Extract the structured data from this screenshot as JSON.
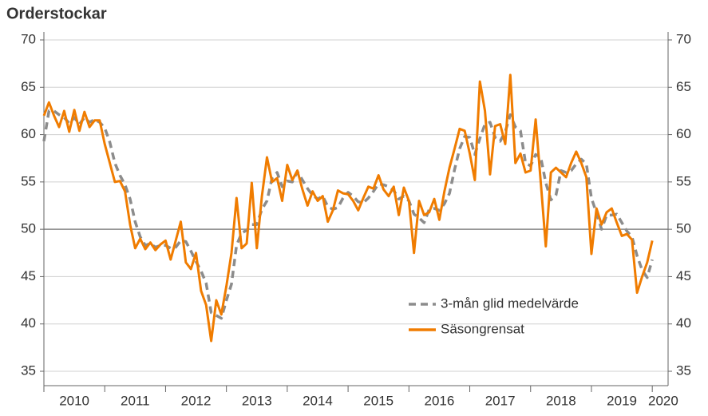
{
  "chart_data": {
    "type": "line",
    "title": "Orderstockar",
    "x_start": 2010,
    "x_step": 0.08333333333333333,
    "xlim": [
      2010,
      2020.26
    ],
    "xtick_marks": [
      2010,
      2011,
      2012,
      2013,
      2014,
      2015,
      2016,
      2017,
      2018,
      2019,
      2020
    ],
    "xticks": [
      {
        "value": 2010.5,
        "label": "2010"
      },
      {
        "value": 2011.5,
        "label": "2011"
      },
      {
        "value": 2012.5,
        "label": "2012"
      },
      {
        "value": 2013.5,
        "label": "2013"
      },
      {
        "value": 2014.5,
        "label": "2014"
      },
      {
        "value": 2015.5,
        "label": "2015"
      },
      {
        "value": 2016.5,
        "label": "2016"
      },
      {
        "value": 2017.5,
        "label": "2017"
      },
      {
        "value": 2018.5,
        "label": "2018"
      },
      {
        "value": 2019.5,
        "label": "2019"
      },
      {
        "value": 2020.18,
        "label": "2020"
      }
    ],
    "ylim": [
      35,
      70
    ],
    "yticks": [
      35,
      40,
      45,
      50,
      55,
      60,
      65,
      70
    ],
    "grid": true,
    "reference_line": 50,
    "legend_position": "lower right",
    "series": [
      {
        "name": "3-mån glid medelvärde",
        "color": "#8c8c8c",
        "dashed": true,
        "values": [
          59.3,
          62.5,
          62.5,
          62.1,
          61.8,
          61.2,
          61.8,
          61.1,
          61.8,
          61.3,
          61.6,
          61.3,
          60.7,
          59.2,
          57.0,
          55.7,
          54.7,
          53.2,
          50.8,
          49.2,
          48.3,
          48.5,
          48.1,
          48.3,
          48.3,
          48.0,
          48.1,
          48.8,
          48.7,
          47.7,
          46.6,
          45.6,
          44.3,
          41.2,
          40.9,
          40.6,
          42.5,
          44.2,
          48.3,
          49.6,
          49.9,
          50.5,
          50.5,
          52.1,
          53.0,
          55.4,
          56.0,
          54.5,
          55.1,
          55.0,
          56.1,
          55.2,
          54.3,
          53.6,
          53.2,
          53.5,
          52.4,
          52.1,
          52.3,
          53.3,
          53.9,
          53.5,
          52.9,
          52.8,
          53.3,
          54.0,
          54.8,
          54.7,
          54.5,
          54.1,
          53.2,
          53.5,
          53.0,
          51.6,
          51.2,
          50.7,
          52.1,
          52.2,
          52.0,
          52.7,
          53.8,
          56.3,
          58.5,
          59.8,
          59.7,
          57.9,
          59.6,
          61.1,
          61.3,
          59.7,
          59.3,
          60.3,
          62.1,
          60.8,
          60.4,
          57.0,
          56.7,
          57.9,
          57.6,
          54.9,
          53.1,
          53.6,
          56.2,
          56.0,
          56.2,
          56.9,
          57.4,
          56.9,
          53.3,
          51.7,
          50.0,
          51.5,
          51.5,
          51.6,
          50.7,
          49.8,
          49.2,
          47.2,
          45.7,
          44.9,
          46.8
        ]
      },
      {
        "name": "Säsongrensat",
        "color": "#f07c00",
        "dashed": false,
        "values": [
          62.0,
          63.4,
          62.0,
          60.8,
          62.5,
          60.3,
          62.6,
          60.4,
          62.4,
          60.8,
          61.5,
          61.5,
          59.0,
          57.0,
          55.0,
          55.1,
          54.0,
          50.5,
          48.0,
          49.0,
          47.9,
          48.6,
          47.8,
          48.4,
          48.8,
          46.8,
          48.8,
          50.8,
          46.5,
          45.8,
          47.5,
          43.5,
          42.0,
          38.2,
          42.5,
          41.0,
          44.0,
          47.5,
          53.3,
          48.0,
          48.5,
          54.9,
          48.0,
          53.5,
          57.6,
          55.0,
          55.4,
          53.0,
          56.8,
          55.2,
          56.2,
          54.2,
          52.5,
          54.0,
          53.0,
          53.5,
          50.8,
          52.0,
          54.1,
          53.8,
          53.7,
          53.0,
          52.0,
          53.3,
          54.5,
          54.3,
          55.7,
          54.2,
          53.5,
          54.5,
          51.5,
          54.4,
          53.0,
          47.5,
          53.0,
          51.5,
          51.8,
          53.2,
          51.0,
          54.0,
          56.5,
          58.5,
          60.6,
          60.4,
          58.0,
          55.2,
          65.6,
          62.5,
          55.8,
          60.9,
          61.1,
          59.0,
          66.3,
          57.0,
          58.0,
          56.0,
          56.2,
          61.6,
          55.0,
          48.2,
          56.0,
          56.5,
          56.0,
          55.5,
          57.0,
          58.2,
          57.0,
          55.5,
          47.4,
          52.2,
          50.5,
          51.8,
          52.2,
          50.7,
          49.3,
          49.5,
          48.9,
          43.3,
          45.0,
          46.5,
          48.8
        ]
      }
    ]
  }
}
